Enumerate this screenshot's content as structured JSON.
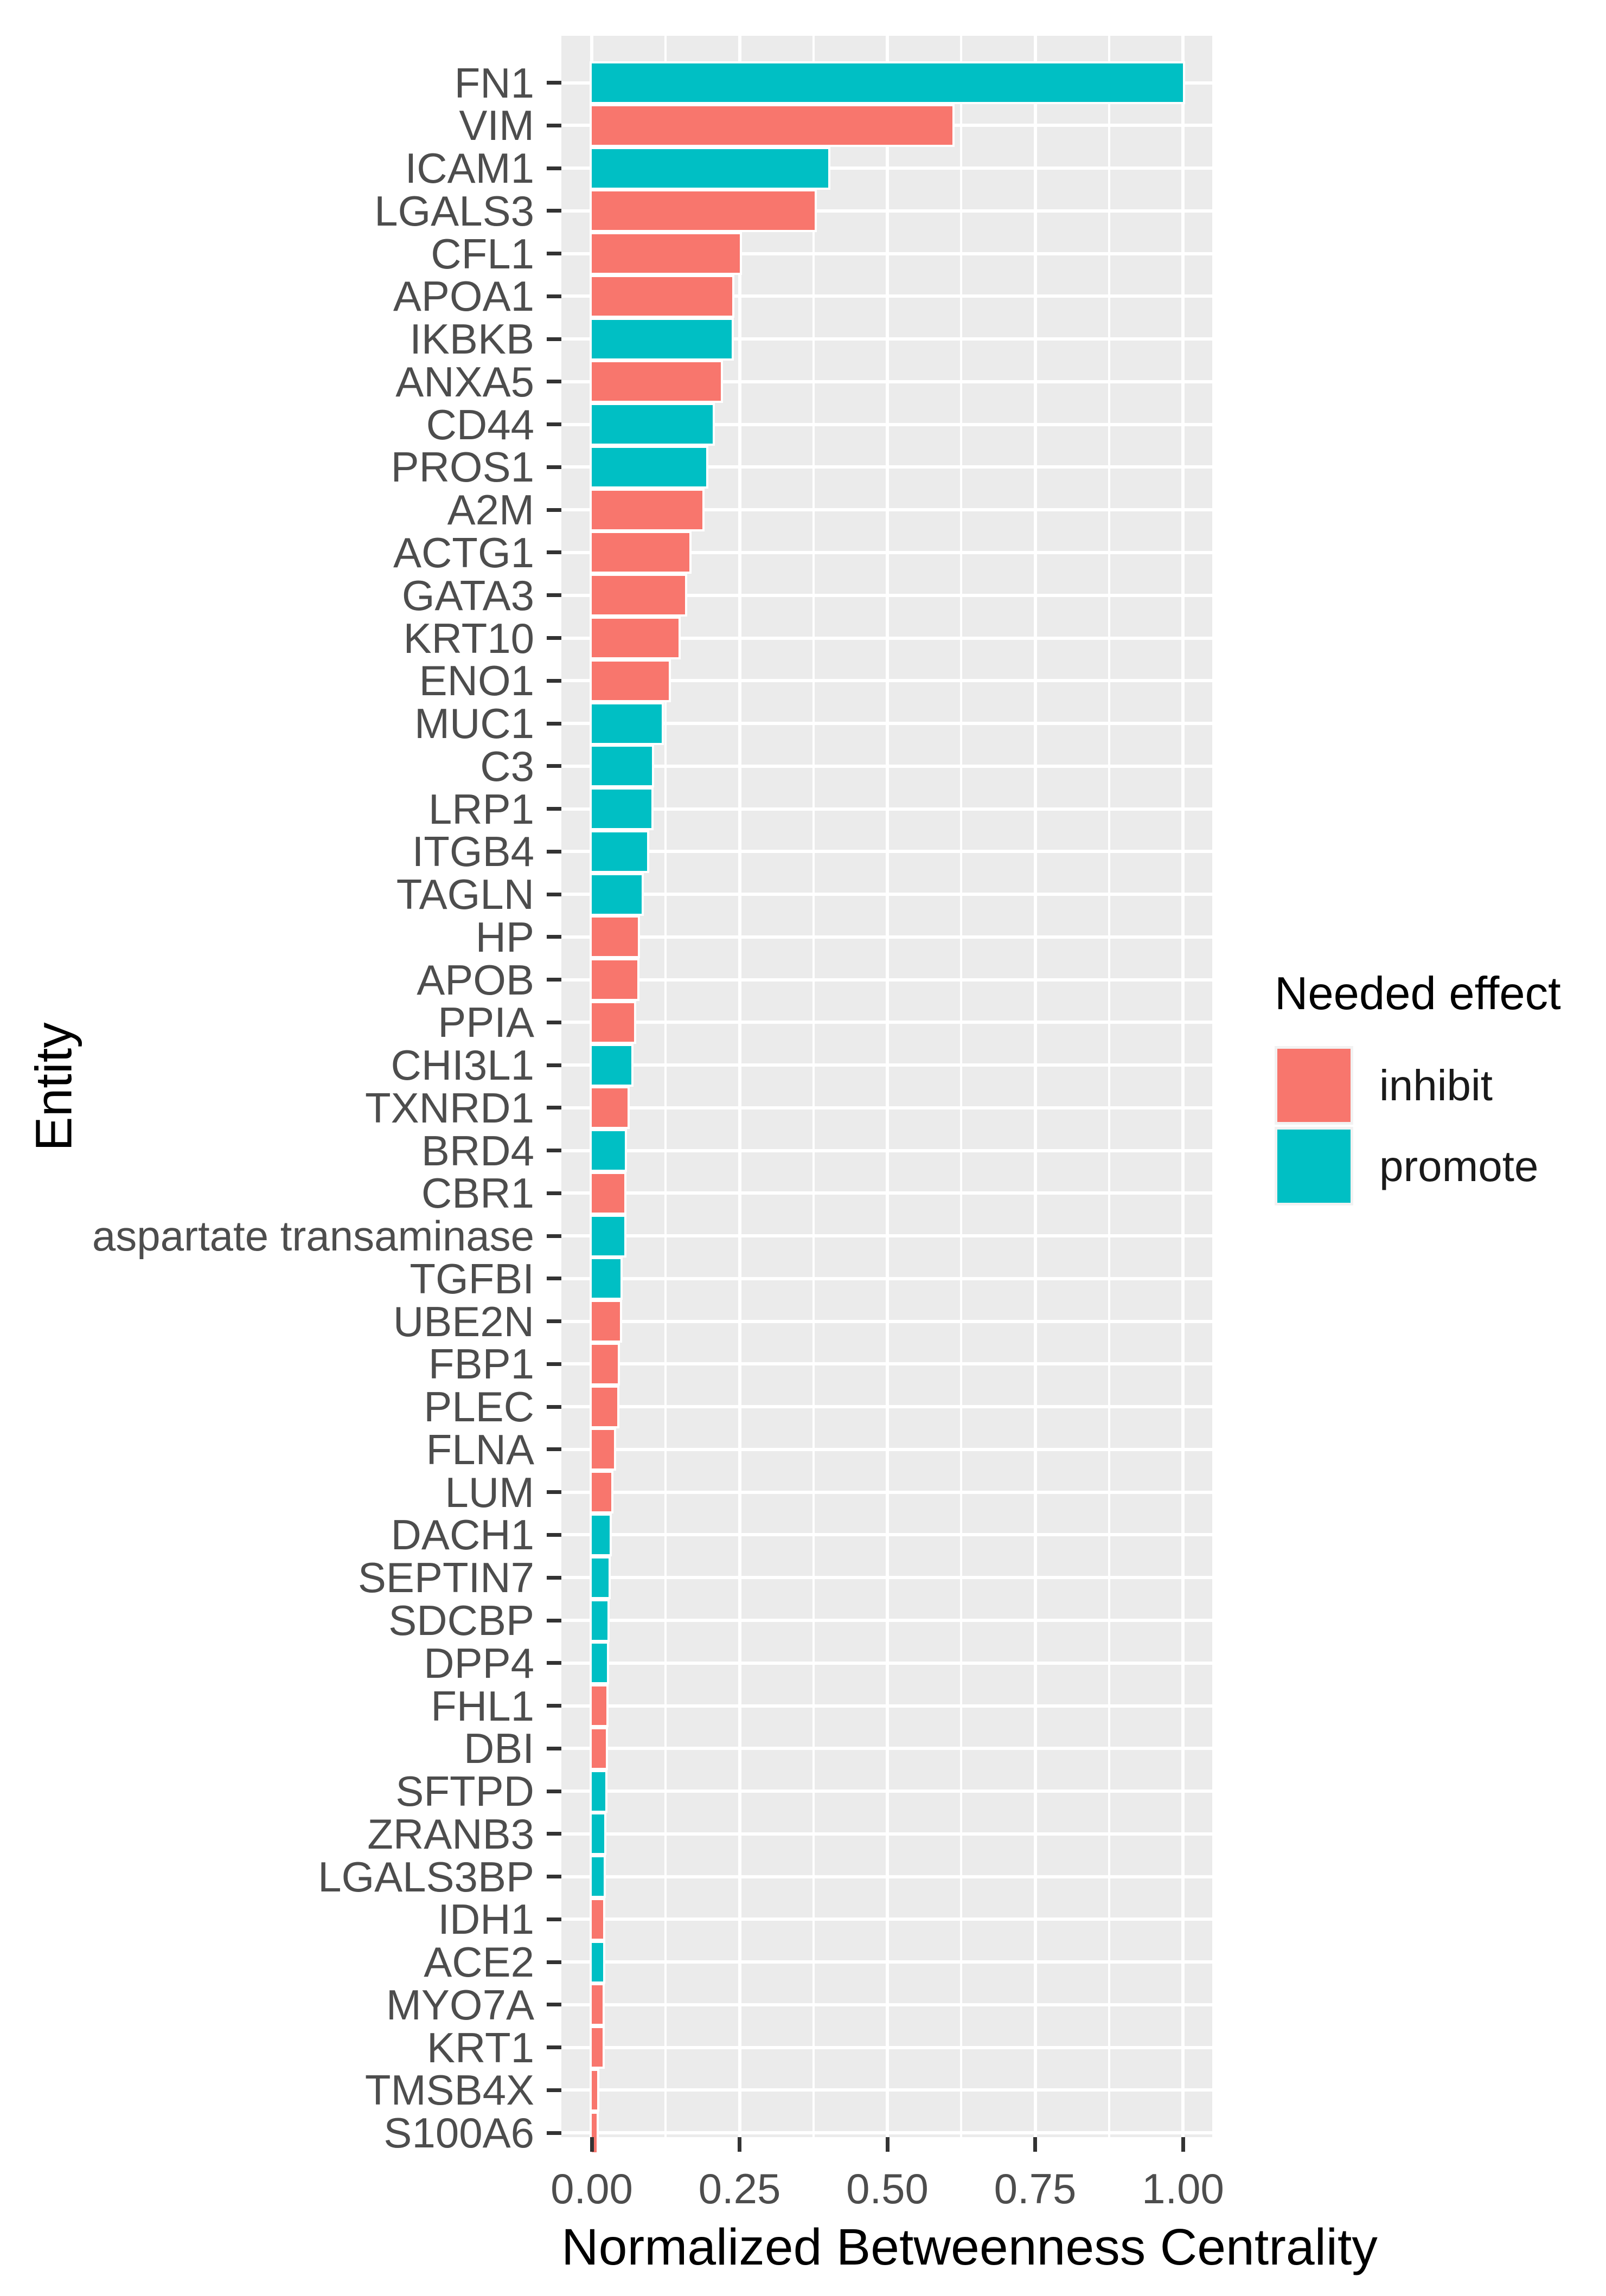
{
  "chart_data": {
    "type": "bar",
    "orientation": "horizontal",
    "xlabel": "Normalized Betweenness Centrality",
    "ylabel": "Entity",
    "xlim": [
      -0.05,
      1.05
    ],
    "x_ticks": [
      0.0,
      0.25,
      0.5,
      0.75,
      1.0
    ],
    "x_tick_labels": [
      "0.00",
      "0.25",
      "0.50",
      "0.75",
      "1.00"
    ],
    "x_minor_gridlines": [
      0.125,
      0.375,
      0.625,
      0.875
    ],
    "grid": "white gridlines on gray panel",
    "legend": {
      "title": "Needed effect",
      "position": "right",
      "entries": [
        {
          "label": "inhibit",
          "color": "#F8766D"
        },
        {
          "label": "promote",
          "color": "#00BFC4"
        }
      ]
    },
    "bars": [
      {
        "entity": "FN1",
        "effect": "promote",
        "value": 1.0
      },
      {
        "entity": "VIM",
        "effect": "inhibit",
        "value": 0.61
      },
      {
        "entity": "ICAM1",
        "effect": "promote",
        "value": 0.4
      },
      {
        "entity": "LGALS3",
        "effect": "inhibit",
        "value": 0.377
      },
      {
        "entity": "CFL1",
        "effect": "inhibit",
        "value": 0.25
      },
      {
        "entity": "APOA1",
        "effect": "inhibit",
        "value": 0.238
      },
      {
        "entity": "IKBKB",
        "effect": "promote",
        "value": 0.237
      },
      {
        "entity": "ANXA5",
        "effect": "inhibit",
        "value": 0.218
      },
      {
        "entity": "CD44",
        "effect": "promote",
        "value": 0.205
      },
      {
        "entity": "PROS1",
        "effect": "promote",
        "value": 0.194
      },
      {
        "entity": "A2M",
        "effect": "inhibit",
        "value": 0.187
      },
      {
        "entity": "ACTG1",
        "effect": "inhibit",
        "value": 0.165
      },
      {
        "entity": "GATA3",
        "effect": "inhibit",
        "value": 0.158
      },
      {
        "entity": "KRT10",
        "effect": "inhibit",
        "value": 0.147
      },
      {
        "entity": "ENO1",
        "effect": "inhibit",
        "value": 0.13
      },
      {
        "entity": "MUC1",
        "effect": "promote",
        "value": 0.118
      },
      {
        "entity": "C3",
        "effect": "promote",
        "value": 0.102
      },
      {
        "entity": "LRP1",
        "effect": "promote",
        "value": 0.101
      },
      {
        "entity": "ITGB4",
        "effect": "promote",
        "value": 0.094
      },
      {
        "entity": "TAGLN",
        "effect": "promote",
        "value": 0.084
      },
      {
        "entity": "HP",
        "effect": "inhibit",
        "value": 0.078
      },
      {
        "entity": "APOB",
        "effect": "inhibit",
        "value": 0.077
      },
      {
        "entity": "PPIA",
        "effect": "inhibit",
        "value": 0.072
      },
      {
        "entity": "CHI3L1",
        "effect": "promote",
        "value": 0.067
      },
      {
        "entity": "TXNRD1",
        "effect": "inhibit",
        "value": 0.061
      },
      {
        "entity": "BRD4",
        "effect": "promote",
        "value": 0.056
      },
      {
        "entity": "CBR1",
        "effect": "inhibit",
        "value": 0.055
      },
      {
        "entity": "aspartate transaminase",
        "effect": "promote",
        "value": 0.055
      },
      {
        "entity": "TGFBI",
        "effect": "promote",
        "value": 0.049
      },
      {
        "entity": "UBE2N",
        "effect": "inhibit",
        "value": 0.048
      },
      {
        "entity": "FBP1",
        "effect": "inhibit",
        "value": 0.044
      },
      {
        "entity": "PLEC",
        "effect": "inhibit",
        "value": 0.043
      },
      {
        "entity": "FLNA",
        "effect": "inhibit",
        "value": 0.038
      },
      {
        "entity": "LUM",
        "effect": "inhibit",
        "value": 0.033
      },
      {
        "entity": "DACH1",
        "effect": "promote",
        "value": 0.03
      },
      {
        "entity": "SEPTIN7",
        "effect": "promote",
        "value": 0.028
      },
      {
        "entity": "SDCBP",
        "effect": "promote",
        "value": 0.027
      },
      {
        "entity": "DPP4",
        "effect": "promote",
        "value": 0.026
      },
      {
        "entity": "FHL1",
        "effect": "inhibit",
        "value": 0.025
      },
      {
        "entity": "DBI",
        "effect": "inhibit",
        "value": 0.024
      },
      {
        "entity": "SFTPD",
        "effect": "promote",
        "value": 0.023
      },
      {
        "entity": "ZRANB3",
        "effect": "promote",
        "value": 0.021
      },
      {
        "entity": "LGALS3BP",
        "effect": "promote",
        "value": 0.02
      },
      {
        "entity": "IDH1",
        "effect": "inhibit",
        "value": 0.019
      },
      {
        "entity": "ACE2",
        "effect": "promote",
        "value": 0.019
      },
      {
        "entity": "MYO7A",
        "effect": "inhibit",
        "value": 0.018
      },
      {
        "entity": "KRT1",
        "effect": "inhibit",
        "value": 0.018
      },
      {
        "entity": "TMSB4X",
        "effect": "inhibit",
        "value": 0.009
      },
      {
        "entity": "S100A6",
        "effect": "inhibit",
        "value": 0.008
      }
    ]
  },
  "colors": {
    "inhibit": "#F8766D",
    "promote": "#00BFC4",
    "panel_bg": "#EBEBEB",
    "gridline": "#FFFFFF",
    "axis_text": "#4D4D4D",
    "tick_mark": "#333333",
    "title_text": "#000000"
  }
}
